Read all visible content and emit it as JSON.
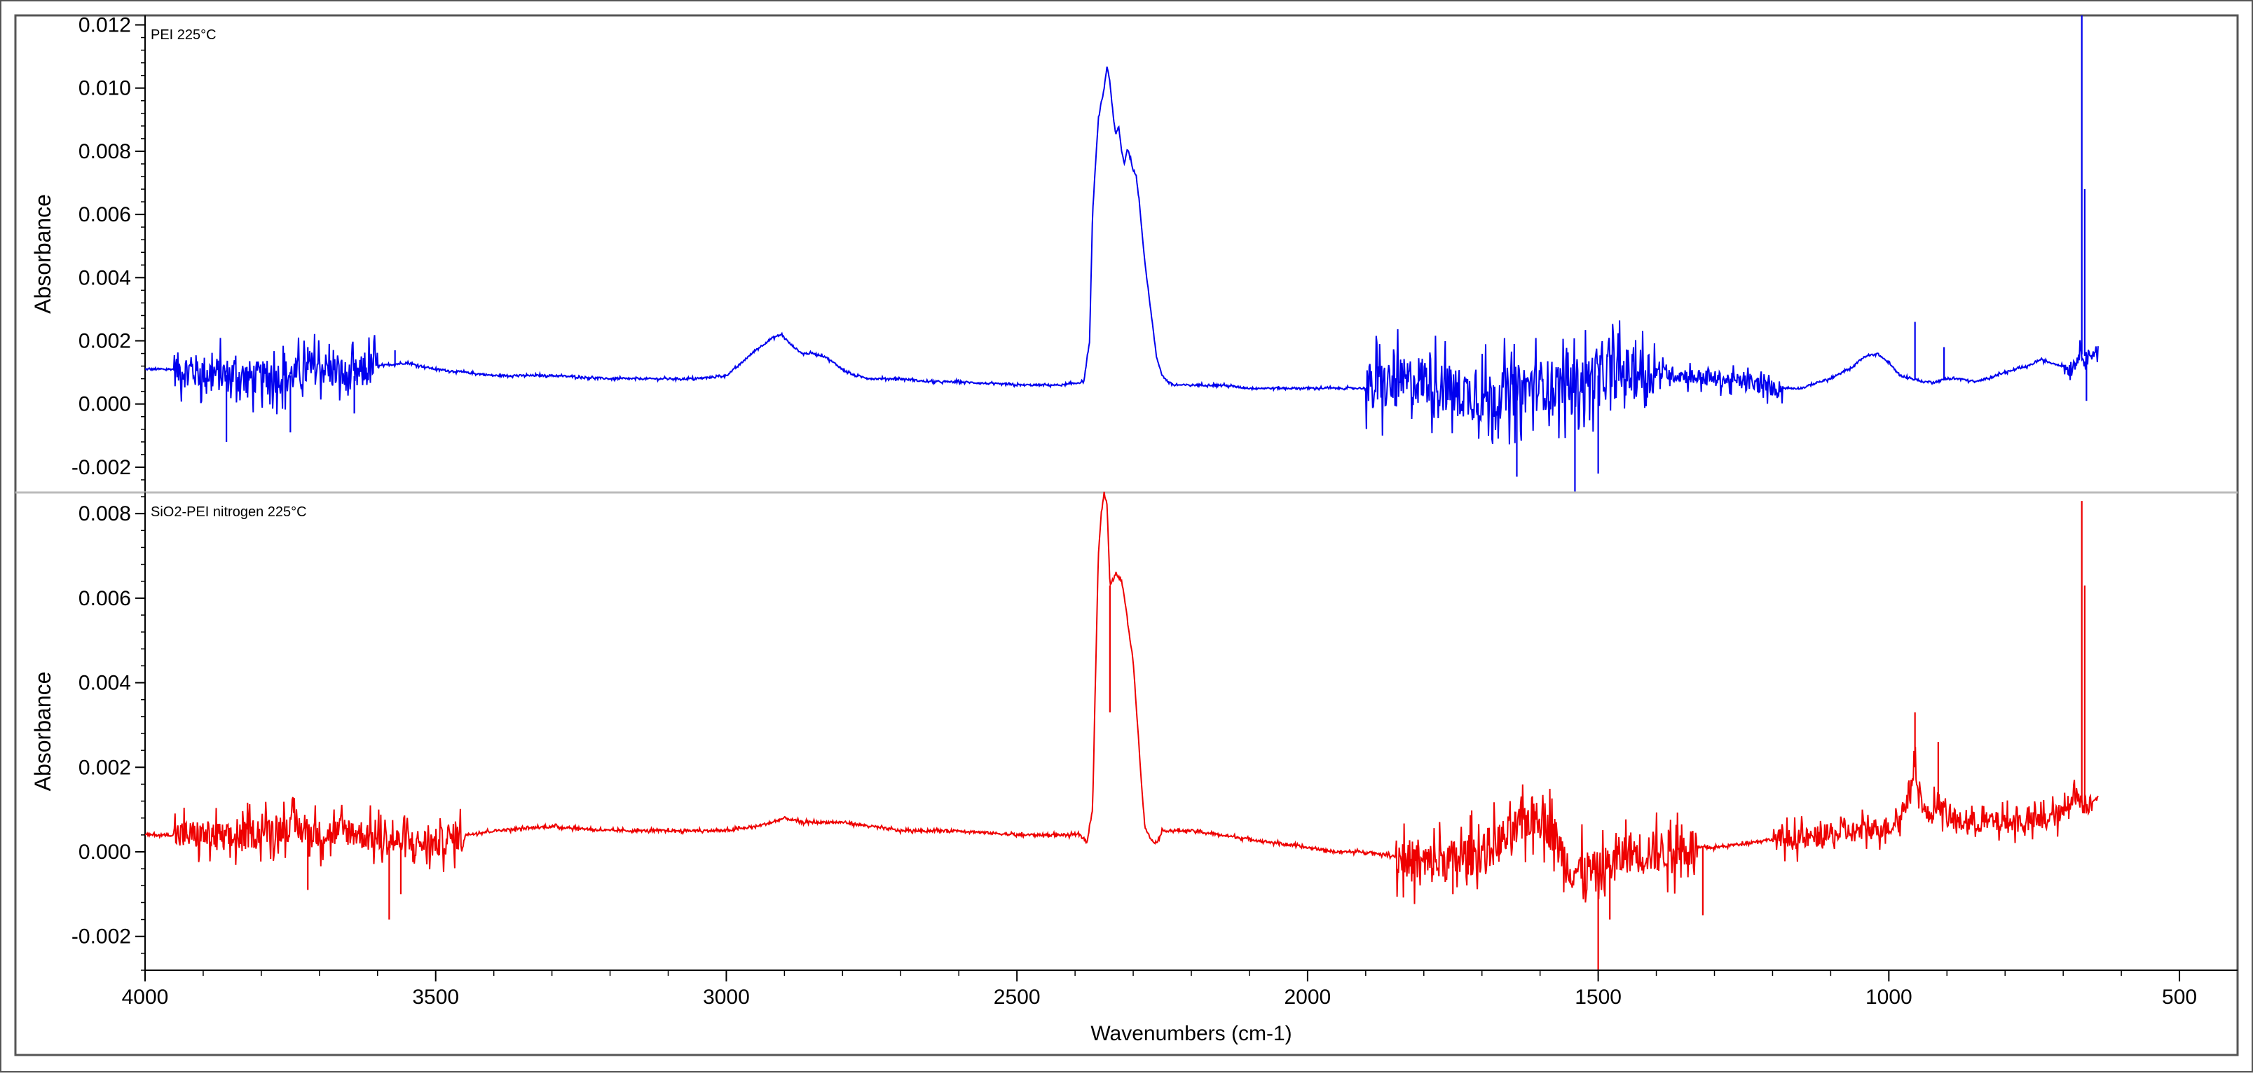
{
  "chart_data": {
    "type": "line",
    "xlabel": "Wavenumbers (cm-1)",
    "xlim": [
      4000,
      400
    ],
    "x_ticks": [
      "4000",
      "3500",
      "3000",
      "2500",
      "2000",
      "1500",
      "1000",
      "500"
    ],
    "x_tick_values": [
      4000,
      3500,
      3000,
      2500,
      2000,
      1500,
      1000,
      500
    ],
    "panels": [
      {
        "label": "PEI 225°C",
        "ylabel": "Absorbance",
        "ylim": [
          -0.0028,
          0.0123
        ],
        "y_ticks": [
          "0.012",
          "0.010",
          "0.008",
          "0.006",
          "0.004",
          "0.002",
          "0.000",
          "-0.002"
        ],
        "y_tick_values": [
          0.012,
          0.01,
          0.008,
          0.006,
          0.004,
          0.002,
          0.0,
          -0.002
        ],
        "color": "#0000ee",
        "noise_regions": [
          [
            3950,
            3600,
            0.0011
          ],
          [
            1900,
            1400,
            0.0016
          ],
          [
            1400,
            1180,
            0.0005
          ],
          [
            700,
            640,
            0.0004
          ]
        ],
        "spikes": [
          [
            3860,
            -0.0012
          ],
          [
            3750,
            -0.0009
          ],
          [
            3720,
            0.0018
          ],
          [
            3640,
            -0.0003
          ],
          [
            3570,
            0.0017
          ],
          [
            1640,
            -0.0023
          ],
          [
            1540,
            -0.0028
          ],
          [
            1500,
            -0.0022
          ],
          [
            955,
            0.0026
          ],
          [
            905,
            0.0018
          ],
          [
            668,
            0.0123
          ],
          [
            663,
            0.0068
          ],
          [
            660,
            0.0001
          ]
        ],
        "x": [
          4000,
          3950,
          3900,
          3850,
          3800,
          3750,
          3700,
          3650,
          3600,
          3550,
          3500,
          3450,
          3400,
          3300,
          3200,
          3100,
          3050,
          3000,
          2980,
          2950,
          2920,
          2905,
          2890,
          2870,
          2850,
          2830,
          2800,
          2780,
          2750,
          2700,
          2650,
          2600,
          2500,
          2420,
          2385,
          2375,
          2370,
          2360,
          2350,
          2345,
          2340,
          2335,
          2330,
          2325,
          2320,
          2315,
          2310,
          2305,
          2300,
          2295,
          2290,
          2285,
          2280,
          2270,
          2260,
          2250,
          2240,
          2230,
          2200,
          2150,
          2100,
          2050,
          2000,
          1950,
          1900,
          1850,
          1800,
          1750,
          1700,
          1650,
          1600,
          1550,
          1500,
          1450,
          1400,
          1350,
          1300,
          1250,
          1200,
          1150,
          1120,
          1100,
          1080,
          1060,
          1050,
          1040,
          1020,
          1000,
          980,
          960,
          940,
          920,
          900,
          880,
          850,
          800,
          760,
          740,
          720,
          700,
          690,
          680,
          672,
          660,
          650,
          640
        ],
        "y": [
          0.0011,
          0.0011,
          0.001,
          0.0009,
          0.0008,
          0.0009,
          0.0012,
          0.0008,
          0.0012,
          0.0013,
          0.0011,
          0.001,
          0.0009,
          0.0009,
          0.0008,
          0.0008,
          0.0008,
          0.0009,
          0.0012,
          0.0017,
          0.0021,
          0.0022,
          0.0019,
          0.0016,
          0.0016,
          0.0015,
          0.0011,
          0.0009,
          0.0008,
          0.0008,
          0.0007,
          0.0007,
          0.0006,
          0.0006,
          0.0007,
          0.002,
          0.006,
          0.009,
          0.01,
          0.0107,
          0.0102,
          0.0092,
          0.0085,
          0.0088,
          0.008,
          0.0076,
          0.0081,
          0.0078,
          0.0074,
          0.0072,
          0.0065,
          0.0055,
          0.0045,
          0.003,
          0.0015,
          0.0009,
          0.0007,
          0.0006,
          0.0006,
          0.0006,
          0.0005,
          0.0005,
          0.0005,
          0.0005,
          0.0005,
          0.0006,
          0.0008,
          0.0004,
          0.0002,
          0.0004,
          0.0006,
          0.0006,
          0.0009,
          0.001,
          0.001,
          0.0009,
          0.0008,
          0.0007,
          0.0005,
          0.0005,
          0.0007,
          0.0008,
          0.001,
          0.0012,
          0.0014,
          0.0015,
          0.0016,
          0.0013,
          0.0009,
          0.0008,
          0.0007,
          0.0007,
          0.0008,
          0.0008,
          0.0007,
          0.001,
          0.0012,
          0.0014,
          0.0013,
          0.0012,
          0.0011,
          0.0013,
          0.0016,
          0.0015,
          0.0016,
          0.0017
        ]
      },
      {
        "label": "SiO2-PEI nitrogen 225°C",
        "ylabel": "Absorbance",
        "ylim": [
          -0.0028,
          0.0085
        ],
        "y_ticks": [
          "0.008",
          "0.006",
          "0.004",
          "0.002",
          "0.000",
          "-0.002"
        ],
        "y_tick_values": [
          0.008,
          0.006,
          0.004,
          0.002,
          0.0,
          -0.002
        ],
        "color": "#ee0000",
        "noise_regions": [
          [
            3950,
            3450,
            0.0007
          ],
          [
            1850,
            1330,
            0.001
          ],
          [
            1200,
            650,
            0.0005
          ]
        ],
        "spikes": [
          [
            3720,
            -0.0009
          ],
          [
            3580,
            -0.0016
          ],
          [
            3560,
            -0.001
          ],
          [
            2340,
            0.0033
          ],
          [
            1750,
            -0.001
          ],
          [
            1500,
            -0.0028
          ],
          [
            1480,
            -0.0016
          ],
          [
            1320,
            -0.0015
          ],
          [
            955,
            0.0033
          ],
          [
            915,
            0.0026
          ],
          [
            668,
            0.0083
          ],
          [
            663,
            0.0063
          ]
        ],
        "x": [
          4000,
          3950,
          3900,
          3850,
          3800,
          3750,
          3700,
          3650,
          3600,
          3550,
          3500,
          3450,
          3400,
          3300,
          3200,
          3100,
          3000,
          2950,
          2920,
          2900,
          2870,
          2850,
          2820,
          2800,
          2750,
          2700,
          2600,
          2500,
          2420,
          2390,
          2380,
          2370,
          2365,
          2360,
          2355,
          2350,
          2345,
          2340,
          2335,
          2330,
          2325,
          2320,
          2315,
          2310,
          2300,
          2295,
          2290,
          2285,
          2280,
          2270,
          2260,
          2250,
          2200,
          2150,
          2100,
          2050,
          2000,
          1950,
          1900,
          1850,
          1800,
          1750,
          1700,
          1650,
          1620,
          1600,
          1580,
          1550,
          1500,
          1450,
          1400,
          1350,
          1300,
          1250,
          1200,
          1150,
          1100,
          1050,
          1000,
          980,
          970,
          955,
          940,
          930,
          915,
          900,
          880,
          850,
          800,
          750,
          700,
          690,
          680,
          672,
          660,
          650,
          640
        ],
        "y": [
          0.0004,
          0.0004,
          0.0004,
          0.0003,
          0.0005,
          0.0006,
          0.0004,
          0.0005,
          0.0003,
          0.0002,
          0.0002,
          0.0004,
          0.0005,
          0.0006,
          0.0005,
          0.0005,
          0.0005,
          0.0006,
          0.0007,
          0.0008,
          0.0007,
          0.0007,
          0.0007,
          0.0007,
          0.0006,
          0.0005,
          0.0005,
          0.0004,
          0.0004,
          0.0004,
          0.0002,
          0.001,
          0.004,
          0.007,
          0.008,
          0.0085,
          0.0082,
          0.0063,
          0.0064,
          0.0066,
          0.0065,
          0.0064,
          0.006,
          0.0055,
          0.0045,
          0.0035,
          0.0025,
          0.0015,
          0.0006,
          0.0003,
          0.0002,
          0.0005,
          0.0005,
          0.0004,
          0.0003,
          0.0002,
          0.0001,
          0.0,
          0.0,
          -0.0001,
          -0.0003,
          -0.0002,
          0.0,
          0.0004,
          0.0008,
          0.0009,
          0.0005,
          -0.0004,
          -0.0005,
          0.0,
          0.0,
          0.0001,
          0.0001,
          0.0002,
          0.0003,
          0.0003,
          0.0004,
          0.0005,
          0.0006,
          0.0008,
          0.0012,
          0.002,
          0.001,
          0.0008,
          0.0012,
          0.0008,
          0.0007,
          0.0007,
          0.0007,
          0.0007,
          0.0009,
          0.0012,
          0.0014,
          0.0012,
          0.0011,
          0.0012,
          0.0013
        ]
      }
    ]
  }
}
